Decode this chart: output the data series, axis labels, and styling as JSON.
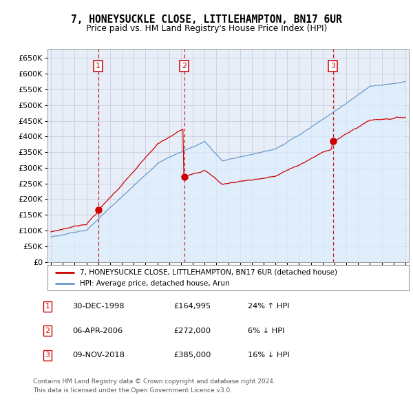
{
  "title": "7, HONEYSUCKLE CLOSE, LITTLEHAMPTON, BN17 6UR",
  "subtitle": "Price paid vs. HM Land Registry's House Price Index (HPI)",
  "ylim": [
    0,
    680000
  ],
  "yticks": [
    0,
    50000,
    100000,
    150000,
    200000,
    250000,
    300000,
    350000,
    400000,
    450000,
    500000,
    550000,
    600000,
    650000
  ],
  "xlim_start": 1994.7,
  "xlim_end": 2025.3,
  "sale_events": [
    {
      "label": "1",
      "year": 1998.99,
      "price": 164995
    },
    {
      "label": "2",
      "year": 2006.27,
      "price": 272000
    },
    {
      "label": "3",
      "year": 2018.86,
      "price": 385000
    }
  ],
  "red_line_color": "#cc0000",
  "blue_line_color": "#6699cc",
  "blue_fill_color": "#ddeeff",
  "dashed_line_color": "#cc0000",
  "box_color": "#cc0000",
  "legend_line1": "7, HONEYSUCKLE CLOSE, LITTLEHAMPTON, BN17 6UR (detached house)",
  "legend_line2": "HPI: Average price, detached house, Arun",
  "table_rows": [
    [
      "1",
      "30-DEC-1998",
      "£164,995",
      "24% ↑ HPI"
    ],
    [
      "2",
      "06-APR-2006",
      "£272,000",
      "6% ↓ HPI"
    ],
    [
      "3",
      "09-NOV-2018",
      "£385,000",
      "16% ↓ HPI"
    ]
  ],
  "footnote1": "Contains HM Land Registry data © Crown copyright and database right 2024.",
  "footnote2": "This data is licensed under the Open Government Licence v3.0.",
  "background_color": "#e8eef8",
  "grid_color": "#c0c8d8"
}
